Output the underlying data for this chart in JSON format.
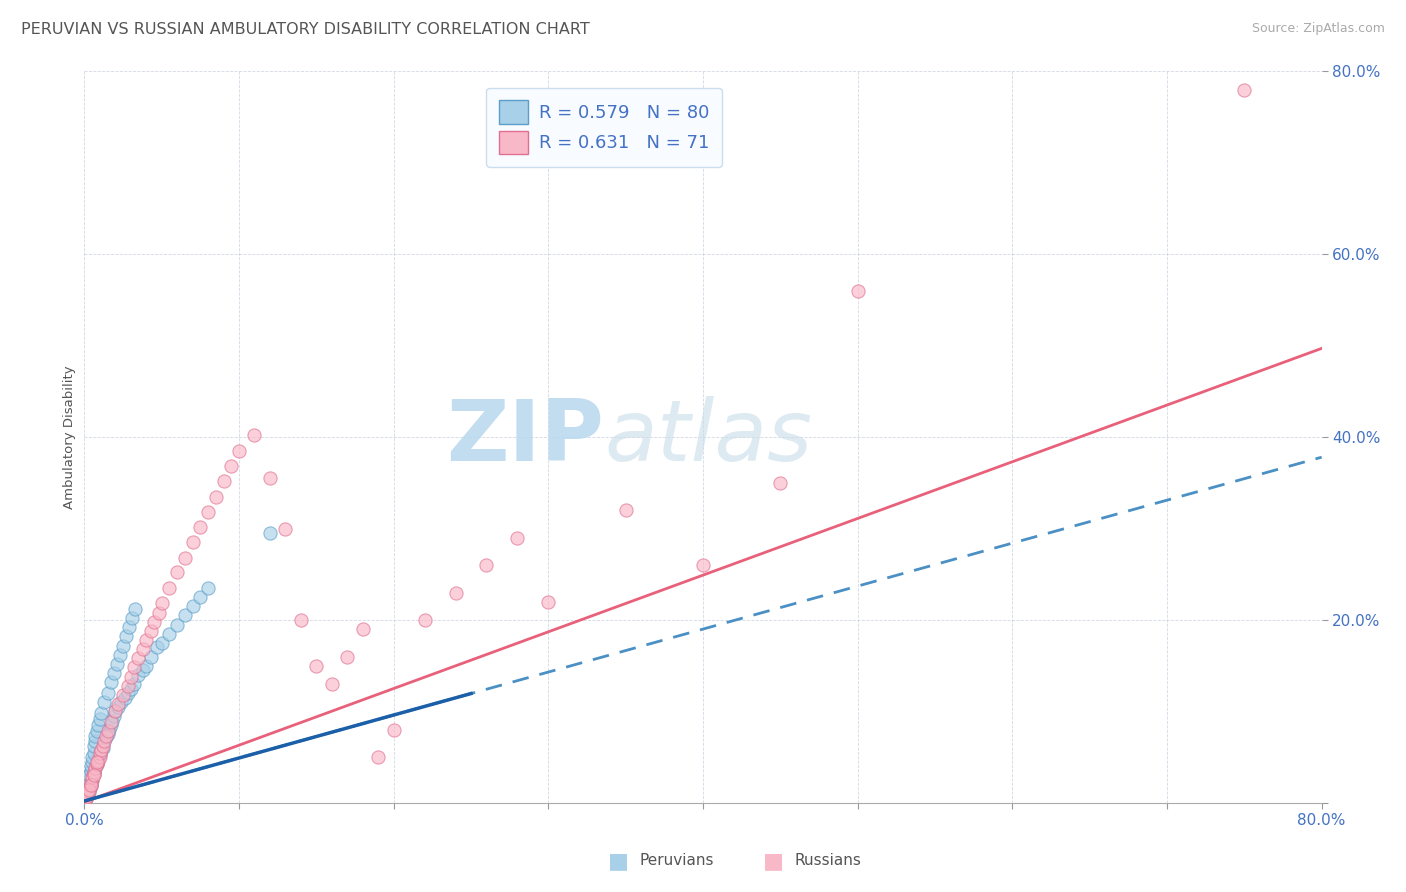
{
  "title": "PERUVIAN VS RUSSIAN AMBULATORY DISABILITY CORRELATION CHART",
  "source": "Source: ZipAtlas.com",
  "ylabel": "Ambulatory Disability",
  "R_peruvian": 0.579,
  "N_peruvian": 80,
  "R_russian": 0.631,
  "N_russian": 71,
  "peruvian_color": "#a8d0e8",
  "russian_color": "#f9b8c8",
  "peruvian_edge": "#5a9ec9",
  "russian_edge": "#e07090",
  "peruvian_line_color": "#4a90c4",
  "russian_line_color": "#e8607a",
  "watermark_zip": "ZIP",
  "watermark_atlas": "atlas",
  "watermark_color": "#cce4f2",
  "legend_box_color": "#e8f4fb",
  "legend_edge_color": "#ccddee",
  "text_color": "#4472c4",
  "title_color": "#555555",
  "xlim": [
    0.0,
    0.8
  ],
  "ylim": [
    0.0,
    0.8
  ],
  "peruvian_line_slope": 0.47,
  "peruvian_line_intercept": 0.002,
  "russian_line_slope": 0.62,
  "russian_line_intercept": 0.001,
  "peruvian_x": [
    0.001,
    0.002,
    0.002,
    0.003,
    0.003,
    0.003,
    0.004,
    0.004,
    0.005,
    0.005,
    0.005,
    0.006,
    0.006,
    0.007,
    0.007,
    0.008,
    0.008,
    0.009,
    0.009,
    0.01,
    0.01,
    0.011,
    0.012,
    0.012,
    0.013,
    0.014,
    0.015,
    0.016,
    0.017,
    0.018,
    0.019,
    0.02,
    0.022,
    0.024,
    0.026,
    0.028,
    0.03,
    0.032,
    0.035,
    0.038,
    0.04,
    0.043,
    0.047,
    0.05,
    0.055,
    0.06,
    0.065,
    0.07,
    0.075,
    0.08,
    0.001,
    0.001,
    0.002,
    0.002,
    0.003,
    0.003,
    0.004,
    0.004,
    0.005,
    0.005,
    0.006,
    0.006,
    0.007,
    0.007,
    0.008,
    0.009,
    0.01,
    0.011,
    0.013,
    0.015,
    0.017,
    0.019,
    0.021,
    0.023,
    0.025,
    0.027,
    0.029,
    0.031,
    0.033,
    0.12
  ],
  "peruvian_y": [
    0.005,
    0.008,
    0.01,
    0.012,
    0.015,
    0.018,
    0.02,
    0.022,
    0.025,
    0.028,
    0.03,
    0.032,
    0.035,
    0.038,
    0.04,
    0.042,
    0.045,
    0.048,
    0.05,
    0.052,
    0.055,
    0.058,
    0.06,
    0.065,
    0.068,
    0.072,
    0.075,
    0.08,
    0.085,
    0.09,
    0.095,
    0.1,
    0.105,
    0.11,
    0.115,
    0.12,
    0.125,
    0.13,
    0.14,
    0.145,
    0.15,
    0.16,
    0.17,
    0.175,
    0.185,
    0.195,
    0.205,
    0.215,
    0.225,
    0.235,
    0.008,
    0.012,
    0.015,
    0.02,
    0.025,
    0.03,
    0.035,
    0.04,
    0.045,
    0.05,
    0.055,
    0.062,
    0.068,
    0.073,
    0.078,
    0.085,
    0.092,
    0.098,
    0.11,
    0.12,
    0.132,
    0.142,
    0.152,
    0.162,
    0.172,
    0.182,
    0.192,
    0.202,
    0.212,
    0.295
  ],
  "russian_x": [
    0.001,
    0.002,
    0.002,
    0.003,
    0.003,
    0.004,
    0.004,
    0.005,
    0.005,
    0.006,
    0.006,
    0.007,
    0.008,
    0.009,
    0.01,
    0.01,
    0.011,
    0.012,
    0.013,
    0.014,
    0.015,
    0.017,
    0.02,
    0.022,
    0.025,
    0.028,
    0.03,
    0.032,
    0.035,
    0.038,
    0.04,
    0.043,
    0.045,
    0.048,
    0.05,
    0.055,
    0.06,
    0.065,
    0.07,
    0.075,
    0.08,
    0.085,
    0.09,
    0.095,
    0.1,
    0.11,
    0.12,
    0.13,
    0.14,
    0.15,
    0.16,
    0.17,
    0.18,
    0.19,
    0.2,
    0.22,
    0.24,
    0.26,
    0.28,
    0.3,
    0.35,
    0.4,
    0.45,
    0.001,
    0.002,
    0.003,
    0.004,
    0.006,
    0.008,
    0.75,
    0.5
  ],
  "russian_y": [
    0.004,
    0.007,
    0.01,
    0.013,
    0.016,
    0.018,
    0.022,
    0.025,
    0.028,
    0.031,
    0.034,
    0.038,
    0.042,
    0.046,
    0.05,
    0.054,
    0.058,
    0.062,
    0.068,
    0.073,
    0.078,
    0.088,
    0.1,
    0.108,
    0.118,
    0.128,
    0.138,
    0.148,
    0.158,
    0.168,
    0.178,
    0.188,
    0.198,
    0.208,
    0.218,
    0.235,
    0.252,
    0.268,
    0.285,
    0.302,
    0.318,
    0.335,
    0.352,
    0.368,
    0.385,
    0.402,
    0.355,
    0.3,
    0.2,
    0.15,
    0.13,
    0.16,
    0.19,
    0.05,
    0.08,
    0.2,
    0.23,
    0.26,
    0.29,
    0.22,
    0.32,
    0.26,
    0.35,
    0.006,
    0.01,
    0.014,
    0.02,
    0.03,
    0.045,
    0.78,
    0.56
  ]
}
